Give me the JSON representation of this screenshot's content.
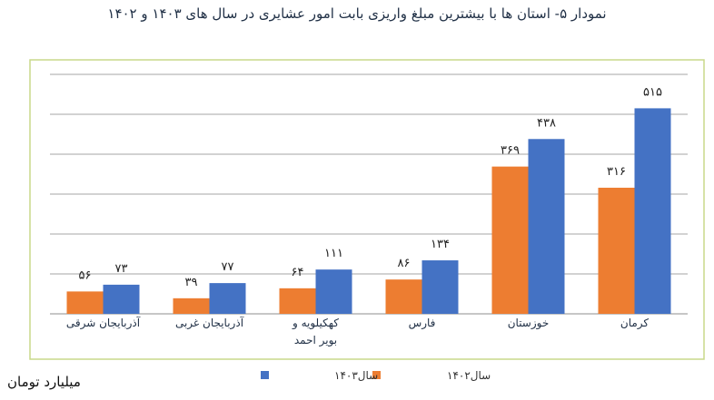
{
  "title": "نمودار ۵- استان ها با بیشترین مبلغ واریزی بابت امور عشایری در سال های  ۱۴۰۳ و ۱۴۰۲",
  "unit": "میلیارد تومان",
  "colors": {
    "frame": "#c9d98a",
    "series_1402": "#ed7d31",
    "series_1403": "#4472c4",
    "grid": "#a6a6a6"
  },
  "chart_data": {
    "type": "bar",
    "categories": [
      [
        "کرمان"
      ],
      [
        "خوزستان"
      ],
      [
        "فارس"
      ],
      [
        "کهکیلویه و",
        "بویر احمد"
      ],
      [
        "آذربایجان غربی"
      ],
      [
        "آذربایجان شرقی"
      ]
    ],
    "series": [
      {
        "name": "سال۱۴۰۲",
        "values": [
          316,
          369,
          86,
          64,
          39,
          56
        ],
        "labels": [
          "۳۱۶",
          "۳۶۹",
          "۸۶",
          "۶۴",
          "۳۹",
          "۵۶"
        ]
      },
      {
        "name": "سال۱۴۰۳",
        "values": [
          515,
          438,
          134,
          111,
          77,
          73
        ],
        "labels": [
          "۵۱۵",
          "۴۳۸",
          "۱۳۴",
          "۱۱۱",
          "۷۷",
          "۷۳"
        ]
      }
    ],
    "ylim": [
      0,
      600
    ],
    "grid": true,
    "legend_position": "bottom"
  }
}
